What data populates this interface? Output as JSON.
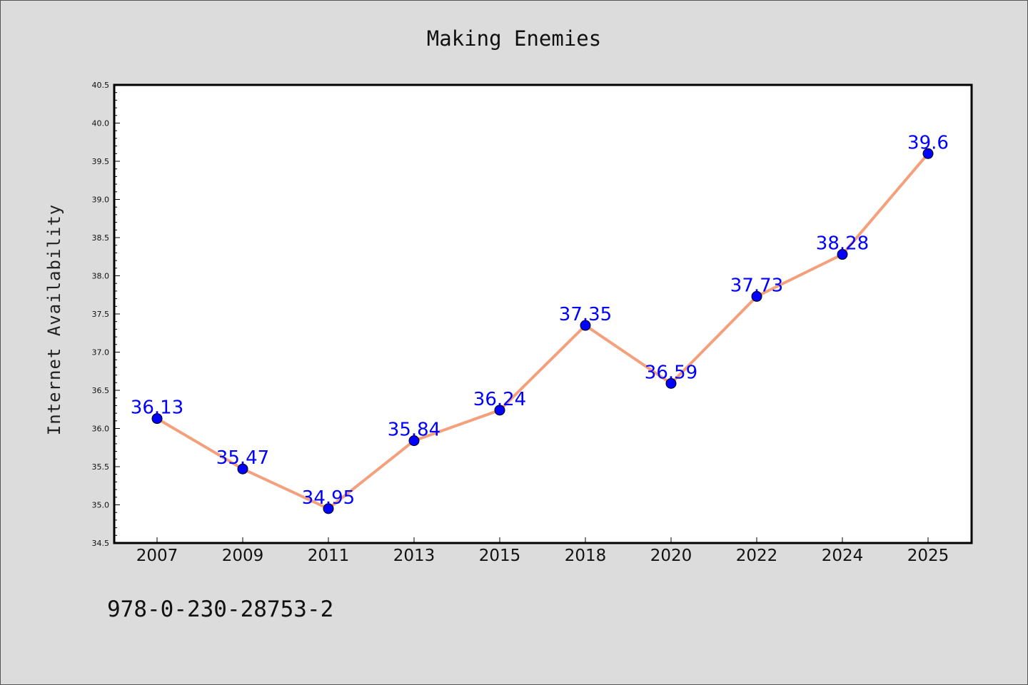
{
  "chart_data": {
    "type": "line",
    "title": "Making Enemies",
    "xlabel": "",
    "ylabel": "Internet Availability",
    "categories": [
      "2007",
      "2009",
      "2011",
      "2013",
      "2015",
      "2018",
      "2020",
      "2022",
      "2024",
      "2025"
    ],
    "series": [
      {
        "values": [
          36.13,
          35.47,
          34.95,
          35.84,
          36.24,
          37.35,
          36.59,
          37.73,
          38.28,
          39.6
        ],
        "labels": [
          "36.13",
          "35.47",
          "34.95",
          "35.84",
          "36.24",
          "37.35",
          "36.59",
          "37.73",
          "38.28",
          "39.6"
        ],
        "line_color": "#f4a07c",
        "marker_color": "#0000ff"
      }
    ],
    "ylim": [
      34.5,
      40.5
    ],
    "yticks": [
      "34.5",
      "35.0",
      "35.5",
      "36.0",
      "36.5",
      "37.0",
      "37.5",
      "38.0",
      "38.5",
      "39.0",
      "39.5",
      "40.0",
      "40.5"
    ],
    "grid": false,
    "legend": "none"
  },
  "footer": {
    "isbn": "978-0-230-28753-2"
  },
  "colors": {
    "background": "#dcdcdc",
    "plot_area": "#ffffff",
    "label": "#0000ff"
  }
}
